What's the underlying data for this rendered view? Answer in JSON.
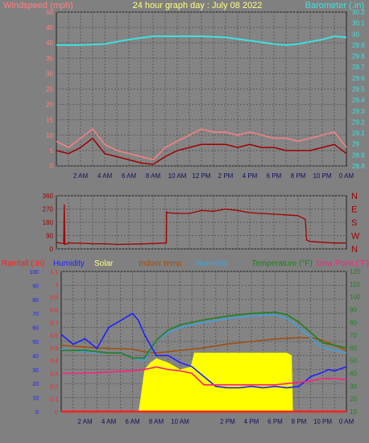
{
  "chart_data": [
    {
      "type": "line",
      "title": "24 hour graph day : July 08 2022",
      "y_left_label": "Windspeed (mph)",
      "y_right_label": "Barometer (.in)",
      "x_ticks": [
        "2 AM",
        "4 AM",
        "6 AM",
        "8 AM",
        "10 AM",
        "12 PM",
        "2 PM",
        "4 PM",
        "6 PM",
        "8 PM",
        "10 PM",
        "0 AM"
      ],
      "y_left_ticks": [
        "0",
        "5",
        "10",
        "15",
        "20",
        "25",
        "30",
        "35",
        "40",
        "45",
        "50"
      ],
      "y_right_ticks": [
        "28.8",
        "28.9",
        "29",
        "29.1",
        "29.2",
        "29.3",
        "29.4",
        "29.5",
        "29.6",
        "29.7",
        "29.8",
        "29.9",
        "30",
        "30.1",
        "30.2"
      ],
      "ylim_left": [
        0,
        50
      ],
      "ylim_right": [
        28.8,
        30.2
      ],
      "series": [
        {
          "role": "gust",
          "color": "#ff8080",
          "x": [
            0,
            1,
            2,
            3,
            4,
            5,
            6,
            7,
            8,
            9,
            10,
            11,
            12,
            13,
            14,
            15,
            16,
            17,
            18,
            19,
            20,
            21,
            22,
            23,
            24
          ],
          "values": [
            8,
            6,
            9,
            12,
            7,
            5,
            4,
            3,
            2,
            6,
            8,
            10,
            12,
            11,
            11,
            10,
            11,
            10,
            9,
            9,
            8,
            9,
            10,
            11,
            6
          ]
        },
        {
          "role": "average",
          "color": "#a00000",
          "x": [
            0,
            1,
            2,
            3,
            4,
            5,
            6,
            7,
            8,
            9,
            10,
            11,
            12,
            13,
            14,
            15,
            16,
            17,
            18,
            19,
            20,
            21,
            22,
            23,
            24
          ],
          "values": [
            5,
            4,
            6,
            9,
            4,
            3,
            2,
            1,
            0.5,
            3,
            5,
            6,
            7,
            7,
            7,
            6,
            7,
            6,
            6,
            5,
            5,
            5,
            6,
            7,
            4
          ]
        },
        {
          "role": "barometer",
          "color": "#40e0e0",
          "x": [
            0,
            2,
            4,
            6,
            8,
            10,
            12,
            14,
            16,
            18,
            19,
            20,
            22,
            23,
            24
          ],
          "values": [
            29.9,
            29.9,
            29.91,
            29.95,
            29.98,
            29.98,
            29.98,
            29.97,
            29.94,
            29.91,
            29.9,
            29.91,
            29.95,
            29.98,
            29.97
          ]
        }
      ]
    },
    {
      "type": "line",
      "y_left_ticks": [
        "0",
        "90",
        "180",
        "270",
        "360"
      ],
      "y_right_ticks": [
        "N",
        "W",
        "S",
        "E",
        "N"
      ],
      "ylim": [
        0,
        360
      ],
      "series": [
        {
          "role": "wind_direction",
          "color": "#a00000",
          "x": [
            0,
            0.6,
            0.65,
            0.7,
            1,
            2,
            3,
            4,
            5,
            6,
            7,
            8,
            9.1,
            9.12,
            9.2,
            10,
            11,
            12,
            13,
            14,
            15,
            16,
            17,
            18,
            19,
            20,
            20.6,
            20.7,
            21,
            22,
            23,
            24
          ],
          "values": [
            45,
            35,
            300,
            30,
            40,
            38,
            35,
            35,
            30,
            32,
            34,
            36,
            40,
            250,
            245,
            240,
            240,
            260,
            255,
            270,
            260,
            245,
            240,
            235,
            230,
            225,
            200,
            60,
            50,
            45,
            40,
            40
          ]
        }
      ]
    },
    {
      "type": "line",
      "legend": [
        "Rainfall (.in)",
        "Humidity",
        "Solar",
        "Indoor temp",
        "Humidex",
        "Temperature (°F)",
        "Dew Point (°F)"
      ],
      "legend_colors": [
        "#ff2020",
        "#2020ff",
        "#ffff80",
        "#a05010",
        "#40a0e0",
        "#208020",
        "#ff2080"
      ],
      "y_humidity_ticks": [
        "0",
        "10",
        "20",
        "30",
        "40",
        "50",
        "60",
        "70",
        "80",
        "90",
        "100"
      ],
      "y_rain_ticks": [
        "0",
        "0.1",
        "0.2",
        "0.3",
        "0.4",
        "0.5",
        "0.6",
        "0.7",
        "0.8",
        "0.9",
        "1",
        "1.1"
      ],
      "y_temp_ticks": [
        "10",
        "20",
        "30",
        "40",
        "50",
        "60",
        "70",
        "80",
        "90",
        "100",
        "110",
        "120"
      ],
      "x_ticks": [
        "2 AM",
        "4 AM",
        "6 AM",
        "8 AM",
        "10 AM",
        "2 PM",
        "4 PM",
        "6 PM",
        "8 PM",
        "10 PM",
        "0 AM"
      ],
      "ylim_humidity": [
        0,
        100
      ],
      "ylim_temp": [
        10,
        120
      ],
      "series": [
        {
          "name": "Humidity",
          "color": "#2020ff",
          "axis": "humidity",
          "x": [
            0,
            1,
            2,
            3,
            4,
            5,
            6,
            6.5,
            7,
            8,
            9,
            10,
            11,
            12,
            13,
            14,
            15,
            16,
            17,
            18,
            19,
            20,
            21,
            22,
            22.5,
            23,
            24
          ],
          "values": [
            55,
            48,
            52,
            45,
            60,
            65,
            70,
            65,
            55,
            40,
            40,
            35,
            32,
            25,
            18,
            17,
            17,
            18,
            17,
            18,
            17,
            18,
            25,
            28,
            30,
            29,
            32
          ]
        },
        {
          "name": "Solar",
          "color": "#ffff00",
          "axis": "humidity",
          "x": [
            0,
            6.5,
            6.6,
            7,
            7.5,
            8,
            9,
            10,
            10.9,
            11,
            11.2,
            12,
            13,
            14,
            15,
            16,
            17,
            18,
            19,
            19.4,
            19.5,
            24
          ],
          "values": [
            0,
            0,
            5,
            30,
            35,
            38,
            35,
            30,
            32,
            36,
            42,
            42,
            42,
            42,
            42,
            42,
            42,
            42,
            42,
            40,
            0,
            0
          ]
        },
        {
          "name": "Indoor temp",
          "color": "#a05010",
          "axis": "temp",
          "x": [
            0,
            3,
            6,
            7,
            8,
            10,
            12,
            14,
            16,
            18,
            20,
            21,
            22,
            23,
            24
          ],
          "values": [
            62,
            60,
            59,
            57,
            56,
            58,
            60,
            63,
            65,
            67,
            68,
            68,
            66,
            62,
            58
          ]
        },
        {
          "name": "Humidex",
          "color": "#40a0e0",
          "axis": "temp",
          "x": [
            0,
            2,
            4,
            5,
            6,
            7,
            8,
            9,
            10,
            12,
            14,
            16,
            18,
            19,
            20,
            21,
            22,
            23,
            24
          ],
          "values": [
            59,
            57,
            56,
            56,
            52,
            50,
            66,
            72,
            76,
            80,
            83,
            85,
            86,
            83,
            76,
            68,
            60,
            58,
            56
          ]
        },
        {
          "name": "Temperature (°F)",
          "color": "#208020",
          "axis": "temp",
          "x": [
            0,
            2,
            4,
            5,
            6,
            7,
            8,
            9,
            10,
            12,
            14,
            16,
            18,
            19,
            20,
            21,
            22,
            23,
            24
          ],
          "values": [
            58,
            58,
            56,
            56,
            52,
            52,
            66,
            74,
            78,
            82,
            85,
            87,
            88,
            86,
            80,
            72,
            64,
            62,
            60
          ]
        },
        {
          "name": "Dew Point (°F)",
          "color": "#ff2080",
          "axis": "temp",
          "x": [
            0,
            2,
            4,
            6,
            7,
            8,
            9,
            10,
            11,
            12,
            14,
            16,
            18,
            19,
            20,
            21,
            22,
            23,
            24
          ],
          "values": [
            40,
            40,
            41,
            42,
            43,
            45,
            43,
            42,
            40,
            31,
            31,
            31,
            31,
            32,
            33,
            34,
            36,
            36,
            35
          ]
        },
        {
          "name": "Rainfall (.in)",
          "color": "#ff2020",
          "axis": "rain",
          "x": [
            0,
            24
          ],
          "values": [
            0,
            0
          ]
        }
      ]
    }
  ]
}
